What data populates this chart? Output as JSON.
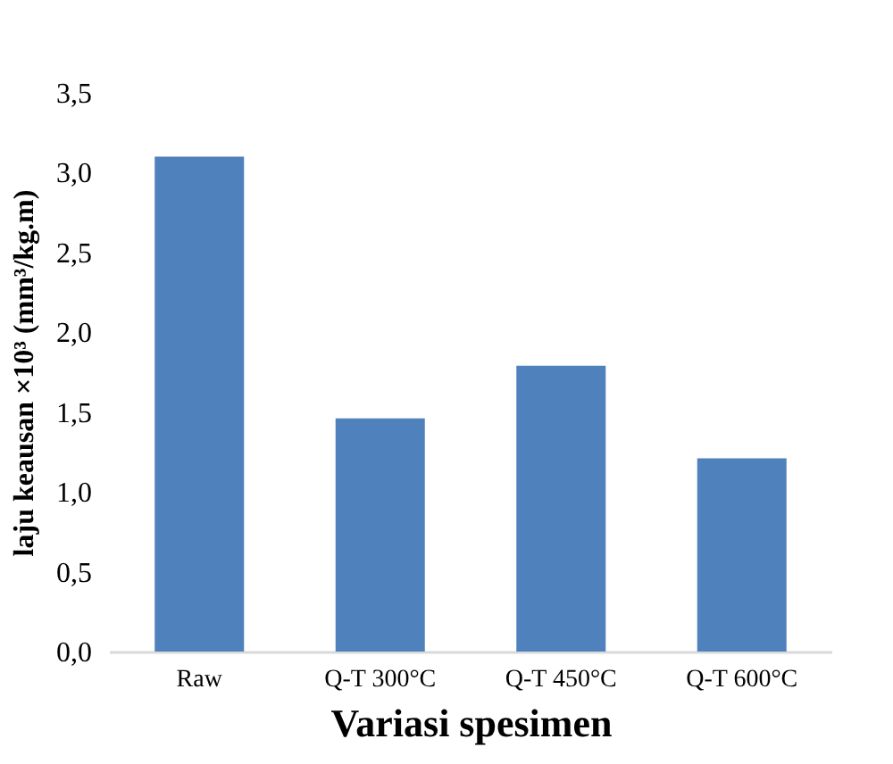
{
  "chart_data": {
    "type": "bar",
    "xlabel": "Variasi spesimen",
    "ylabel": "laju keausan ×10³ (mm³/kg.m)",
    "categories": [
      "Raw",
      "Q-T 300°C",
      "Q-T 450°C",
      "Q-T 600°C"
    ],
    "values": [
      3.1,
      1.46,
      1.79,
      1.21
    ],
    "color": "#4f81bd",
    "ylim": [
      0,
      3.5
    ],
    "yticks": [
      {
        "value": 0,
        "label": "0,0"
      },
      {
        "value": 0.5,
        "label": "0,5"
      },
      {
        "value": 1,
        "label": "1,0"
      },
      {
        "value": 1.5,
        "label": "1,5"
      },
      {
        "value": 2,
        "label": "2,0"
      },
      {
        "value": 2.5,
        "label": "2,5"
      },
      {
        "value": 3,
        "label": "3,0"
      },
      {
        "value": 3.5,
        "label": "3,5"
      }
    ],
    "grid": false
  }
}
